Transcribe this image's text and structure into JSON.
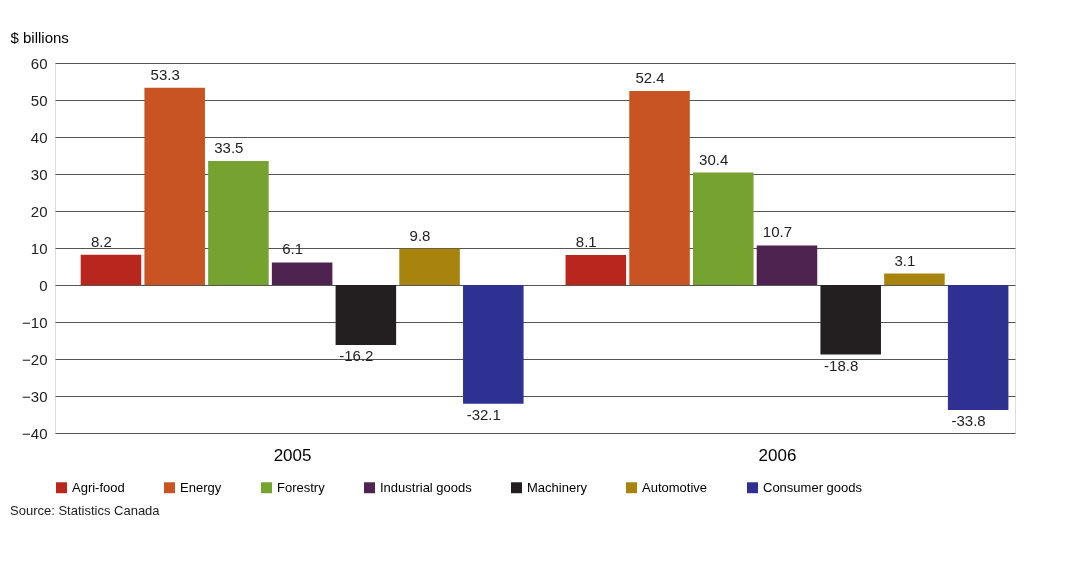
{
  "chart_data": {
    "type": "bar",
    "ylabel": "$ billions",
    "categories": [
      "2005",
      "2006"
    ],
    "series": [
      {
        "name": "Agri-food",
        "color": "#b9261d",
        "values": [
          8.2,
          8.1
        ]
      },
      {
        "name": "Energy",
        "color": "#c95423",
        "values": [
          53.3,
          52.4
        ]
      },
      {
        "name": "Forestry",
        "color": "#76a22f",
        "values": [
          33.5,
          30.4
        ]
      },
      {
        "name": "Industrial goods",
        "color": "#4e2350",
        "values": [
          6.1,
          10.7
        ]
      },
      {
        "name": "Machinery",
        "color": "#231f20",
        "values": [
          -16.2,
          -18.8
        ]
      },
      {
        "name": "Automotive",
        "color": "#a8830d",
        "values": [
          9.8,
          3.1
        ]
      },
      {
        "name": "Consumer goods",
        "color": "#2e3192",
        "values": [
          -32.1,
          -33.8
        ]
      }
    ],
    "ylim": [
      -40,
      60
    ],
    "yticks": [
      -40,
      -30,
      -20,
      -10,
      0,
      10,
      20,
      30,
      40,
      50,
      60
    ],
    "grid": "y",
    "legend": "bottom",
    "data_labels": true,
    "annotations": [
      "Source: Statistics Canada"
    ]
  }
}
